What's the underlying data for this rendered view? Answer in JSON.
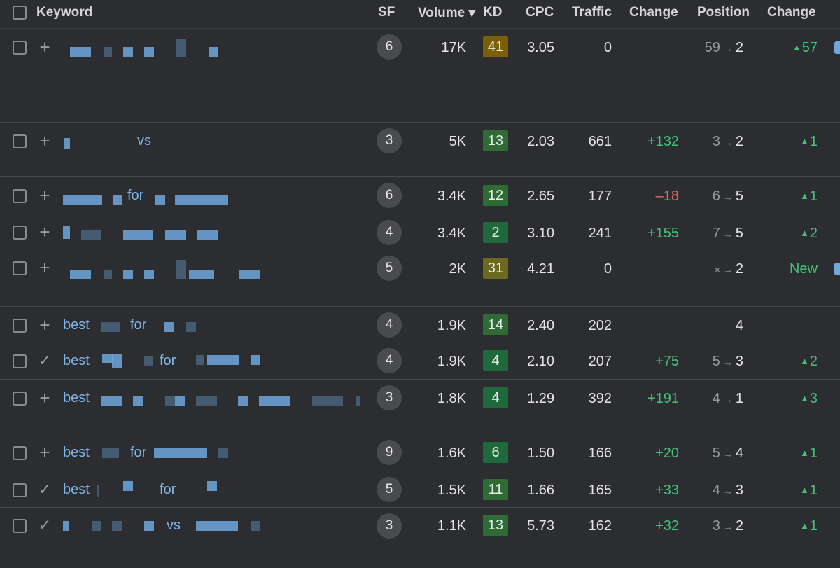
{
  "header": {
    "keyword": "Keyword",
    "sf": "SF",
    "volume": "Volume ▾",
    "kd": "KD",
    "cpc": "CPC",
    "traffic": "Traffic",
    "change": "Change",
    "position": "Position",
    "position_change": "Change"
  },
  "colors": {
    "kd_yellow": "#7a5f06",
    "kd_olive": "#6b6a1e",
    "kd_green": "#2f6b34",
    "kd_darkgreen": "#1f6a3d",
    "positive": "#45c27a",
    "negative": "#e06a6a",
    "link": "#7fb5e8"
  },
  "rows": [
    {
      "action": "plus",
      "keyword": "",
      "sf": "6",
      "volume": "17K",
      "kd": "41",
      "kd_color": "kd_yellow",
      "cpc": "3.05",
      "traffic": "0",
      "change": "",
      "pos_from": "59",
      "pos_to": "2",
      "pos_change": "57"
    },
    {
      "action": "plus",
      "keyword": "vs",
      "sf": "3",
      "volume": "5K",
      "kd": "13",
      "kd_color": "kd_green",
      "cpc": "2.03",
      "traffic": "661",
      "change": "+132",
      "pos_from": "3",
      "pos_to": "2",
      "pos_change": "1"
    },
    {
      "action": "plus",
      "keyword": "for",
      "sf": "6",
      "volume": "3.4K",
      "kd": "12",
      "kd_color": "kd_green",
      "cpc": "2.65",
      "traffic": "177",
      "change": "–18",
      "pos_from": "6",
      "pos_to": "5",
      "pos_change": "1"
    },
    {
      "action": "plus",
      "keyword": "",
      "sf": "4",
      "volume": "3.4K",
      "kd": "2",
      "kd_color": "kd_darkgreen",
      "cpc": "3.10",
      "traffic": "241",
      "change": "+155",
      "pos_from": "7",
      "pos_to": "5",
      "pos_change": "2"
    },
    {
      "action": "plus",
      "keyword": "",
      "sf": "5",
      "volume": "2K",
      "kd": "31",
      "kd_color": "kd_olive",
      "cpc": "4.21",
      "traffic": "0",
      "change": "",
      "pos_from": "×",
      "pos_to": "2",
      "pos_change": "New"
    },
    {
      "action": "plus",
      "keyword": "best",
      "keyword2": "for",
      "sf": "4",
      "volume": "1.9K",
      "kd": "14",
      "kd_color": "kd_green",
      "cpc": "2.40",
      "traffic": "202",
      "change": "",
      "pos_from": "",
      "pos_to": "4",
      "pos_change": ""
    },
    {
      "action": "check",
      "keyword": "best",
      "keyword2": "for",
      "sf": "4",
      "volume": "1.9K",
      "kd": "4",
      "kd_color": "kd_darkgreen",
      "cpc": "2.10",
      "traffic": "207",
      "change": "+75",
      "pos_from": "5",
      "pos_to": "3",
      "pos_change": "2"
    },
    {
      "action": "plus",
      "keyword": "best",
      "sf": "3",
      "volume": "1.8K",
      "kd": "4",
      "kd_color": "kd_darkgreen",
      "cpc": "1.29",
      "traffic": "392",
      "change": "+191",
      "pos_from": "4",
      "pos_to": "1",
      "pos_change": "3"
    },
    {
      "action": "plus",
      "keyword": "best",
      "keyword2": "for",
      "sf": "9",
      "volume": "1.6K",
      "kd": "6",
      "kd_color": "kd_darkgreen",
      "cpc": "1.50",
      "traffic": "166",
      "change": "+20",
      "pos_from": "5",
      "pos_to": "4",
      "pos_change": "1"
    },
    {
      "action": "check",
      "keyword": "best",
      "keyword2": "for",
      "sf": "5",
      "volume": "1.5K",
      "kd": "11",
      "kd_color": "kd_green",
      "cpc": "1.66",
      "traffic": "165",
      "change": "+33",
      "pos_from": "4",
      "pos_to": "3",
      "pos_change": "1"
    },
    {
      "action": "check",
      "keyword": "vs",
      "sf": "3",
      "volume": "1.1K",
      "kd": "13",
      "kd_color": "kd_green",
      "cpc": "5.73",
      "traffic": "162",
      "change": "+32",
      "pos_from": "3",
      "pos_to": "2",
      "pos_change": "1"
    }
  ]
}
